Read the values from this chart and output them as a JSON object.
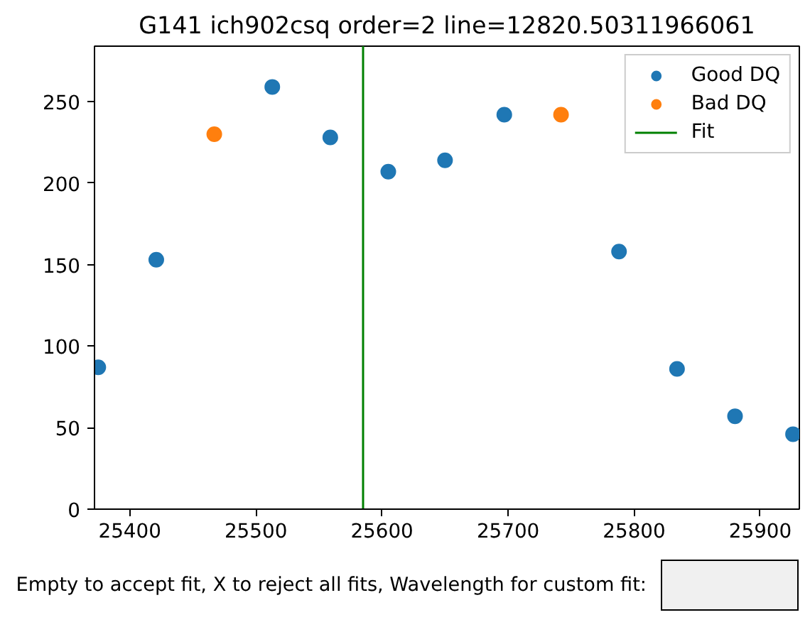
{
  "chart_data": {
    "type": "scatter",
    "title": "G141 ich902csq order=2 line=12820.50311966061",
    "series": [
      {
        "name": "Good DQ",
        "color": "#1f77b4",
        "marker": "circle",
        "x": [
          25375,
          25421,
          25513,
          25559,
          25605,
          25650,
          25697,
          25788,
          25834,
          25880,
          25926
        ],
        "values": [
          87,
          153,
          259,
          228,
          207,
          214,
          242,
          158,
          86,
          57,
          46
        ]
      },
      {
        "name": "Bad DQ",
        "color": "#ff7f0e",
        "marker": "circle",
        "x": [
          25467,
          25742
        ],
        "values": [
          230,
          242
        ]
      },
      {
        "type": "line",
        "name": "Fit",
        "color": "#008000",
        "line_style": "solid",
        "x": [
          25585,
          25585
        ],
        "values": [
          0,
          284
        ]
      }
    ],
    "xlim": [
      25372,
      25931
    ],
    "ylim": [
      0,
      284
    ],
    "xticks": [
      25400,
      25500,
      25600,
      25700,
      25800,
      25900
    ],
    "yticks": [
      0,
      50,
      100,
      150,
      200,
      250
    ],
    "grid": false,
    "legend": "top right",
    "annotations": [
      "Empty to accept fit, X to reject all fits, Wavelength for custom fit:"
    ]
  }
}
